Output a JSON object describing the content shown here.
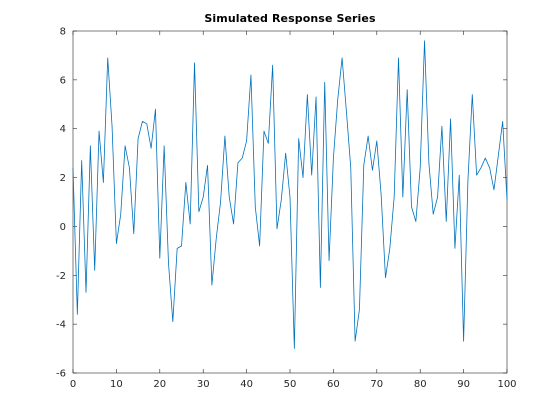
{
  "chart_data": {
    "type": "line",
    "title": "Simulated Response Series",
    "xlabel": "",
    "ylabel": "",
    "xlim": [
      0,
      100
    ],
    "ylim": [
      -6,
      8
    ],
    "xticks": [
      0,
      10,
      20,
      30,
      40,
      50,
      60,
      70,
      80,
      90,
      100
    ],
    "yticks": [
      -6,
      -4,
      -2,
      0,
      2,
      4,
      6,
      8
    ],
    "grid": false,
    "series_color": "#0072BD",
    "series": [
      {
        "x": [
          0,
          1,
          2,
          3,
          4,
          5,
          6,
          7,
          8,
          9,
          10,
          11,
          12,
          13,
          14,
          15,
          16,
          17,
          18,
          19,
          20,
          21,
          22,
          23,
          24,
          25,
          26,
          27,
          28,
          29,
          30,
          31,
          32,
          33,
          34,
          35,
          36,
          37,
          38,
          39,
          40,
          41,
          42,
          43,
          44,
          45,
          46,
          47,
          48,
          49,
          50,
          51,
          52,
          53,
          54,
          55,
          56,
          57,
          58,
          59,
          60,
          61,
          62,
          63,
          64,
          65,
          66,
          67,
          68,
          69,
          70,
          71,
          72,
          73,
          74,
          75,
          76,
          77,
          78,
          79,
          80,
          81,
          82,
          83,
          84,
          85,
          86,
          87,
          88,
          89,
          90,
          91,
          92,
          93,
          94,
          95,
          96,
          97,
          98,
          99,
          100
        ],
        "y": [
          2.4,
          -3.6,
          2.7,
          -2.7,
          3.3,
          -1.8,
          3.9,
          1.8,
          6.9,
          4.1,
          -0.7,
          0.5,
          3.3,
          2.4,
          -0.3,
          3.6,
          4.3,
          4.2,
          3.2,
          4.8,
          -1.3,
          3.3,
          -1.5,
          -3.9,
          -0.9,
          -0.8,
          1.8,
          0.1,
          6.7,
          0.6,
          1.2,
          2.5,
          -2.4,
          -0.5,
          1.0,
          3.7,
          1.2,
          0.1,
          2.6,
          2.8,
          3.5,
          6.2,
          0.8,
          -0.8,
          3.9,
          3.4,
          6.6,
          -0.1,
          1.1,
          3.0,
          1.2,
          -5.0,
          3.6,
          2.0,
          5.4,
          2.1,
          5.3,
          -2.5,
          5.9,
          -1.4,
          2.8,
          5.2,
          6.9,
          4.7,
          2.4,
          -4.7,
          -3.4,
          2.5,
          3.7,
          2.3,
          3.5,
          1.3,
          -2.1,
          -0.9,
          1.2,
          6.9,
          1.2,
          5.6,
          0.8,
          0.2,
          2.4,
          7.6,
          2.6,
          0.5,
          1.2,
          4.1,
          0.2,
          4.4,
          -0.9,
          2.1,
          -4.7,
          1.9,
          5.4,
          2.1,
          2.4,
          2.8,
          2.4,
          1.5,
          2.9,
          4.3,
          1.1
        ]
      }
    ]
  }
}
